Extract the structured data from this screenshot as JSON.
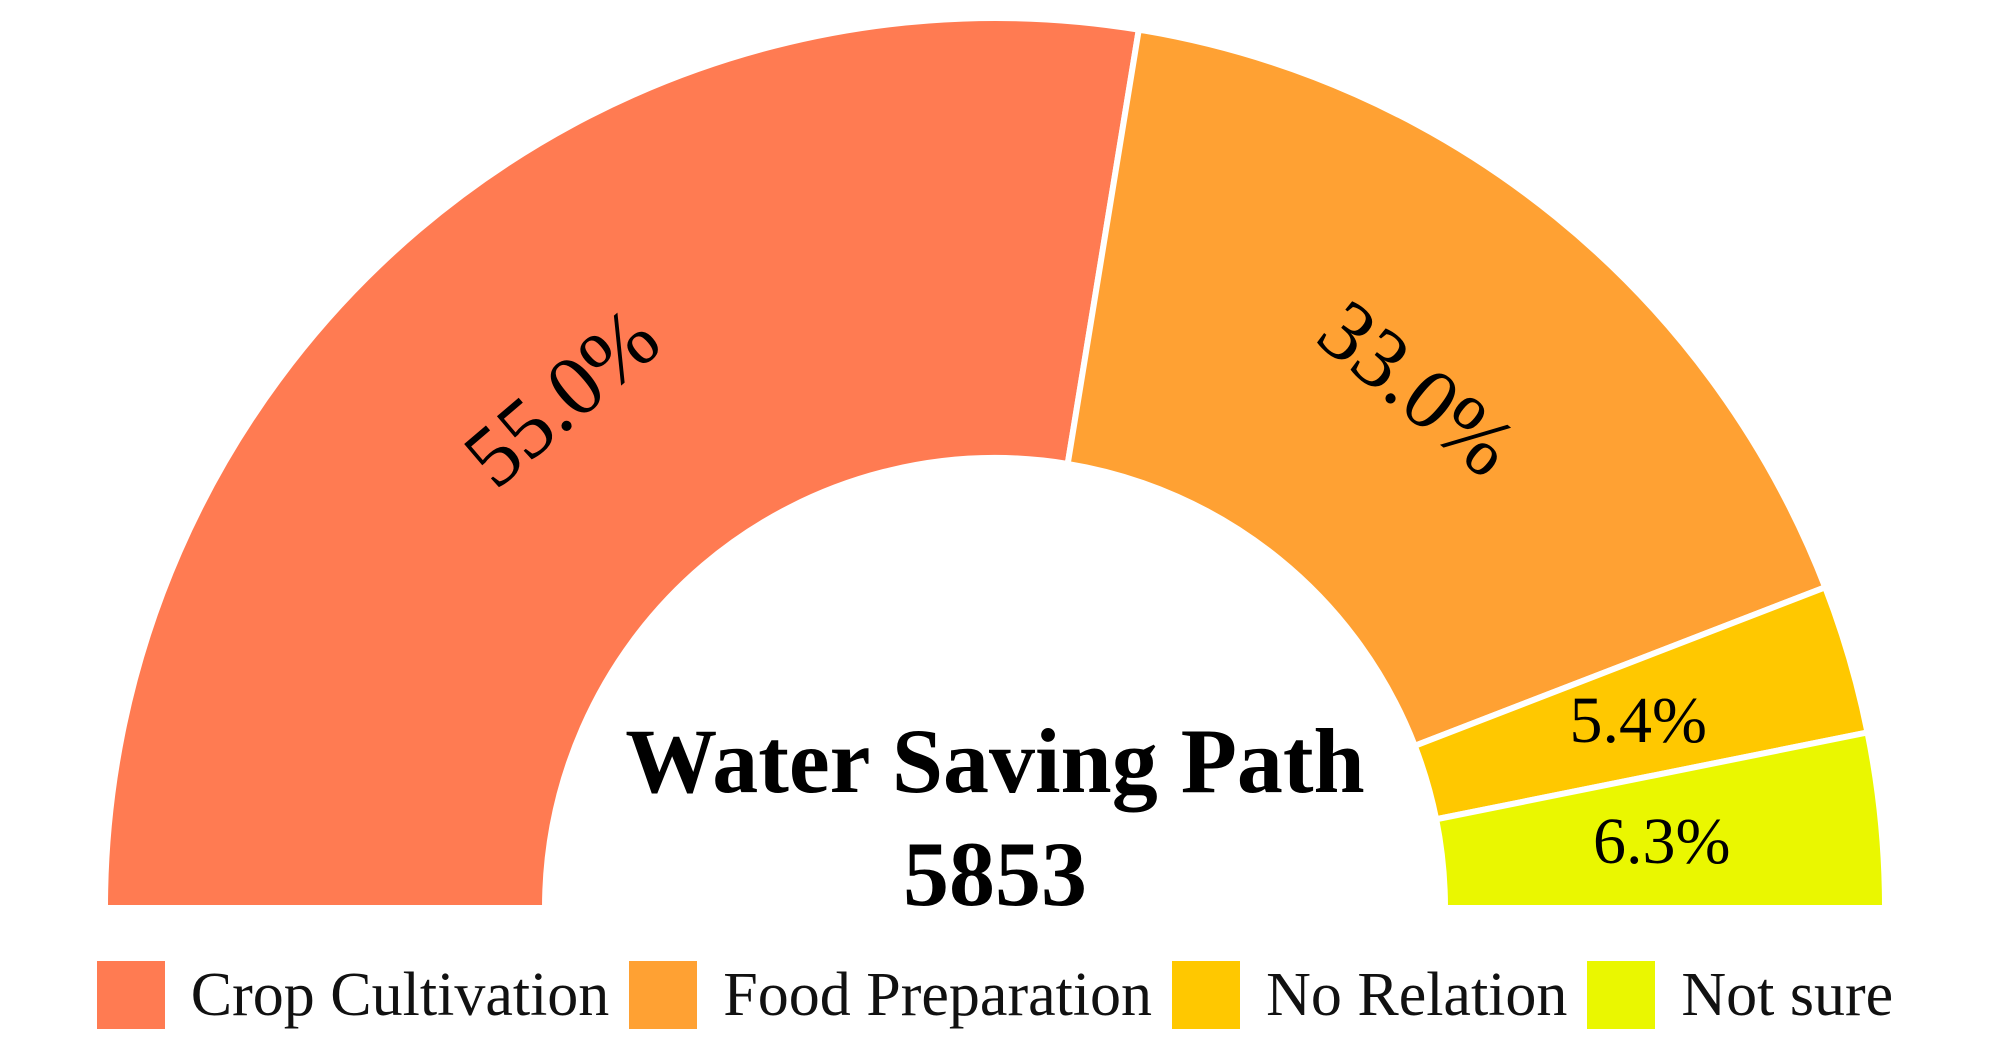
{
  "chart_data": {
    "type": "pie",
    "style": "half-donut",
    "title": "Water Saving Path",
    "total_label": "5853",
    "categories": [
      "Crop Cultivation",
      "Food Preparation",
      "No Relation",
      "Not sure"
    ],
    "values": [
      55.0,
      33.0,
      5.4,
      6.3
    ],
    "labels": [
      "55.0%",
      "33.0%",
      "5.4%",
      "6.3%"
    ],
    "colors": [
      "#ff7b52",
      "#ffa133",
      "#ffc800",
      "#eaf700"
    ],
    "legend_position": "bottom"
  }
}
